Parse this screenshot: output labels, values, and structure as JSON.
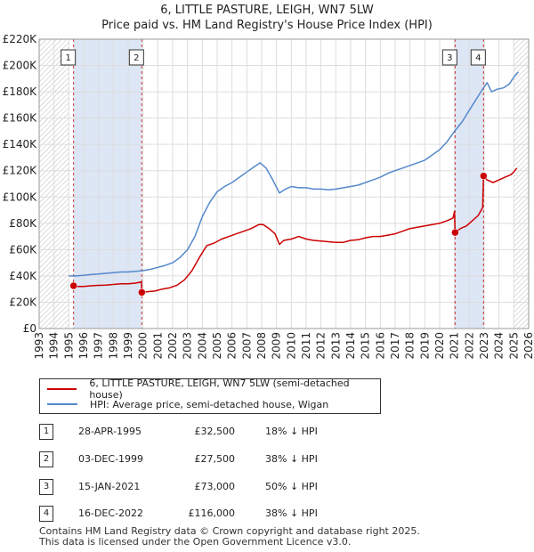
{
  "title_line1": "6, LITTLE PASTURE, LEIGH, WN7 5LW",
  "title_line2": "Price paid vs. HM Land Registry's House Price Index (HPI)",
  "colors": {
    "property": "#cc0000",
    "hpi": "#5588cc",
    "band": "#dde6f5",
    "hatch": "#bbbbbb",
    "vline": "#cc3333"
  },
  "chart_data": {
    "type": "line",
    "ylabel": "",
    "xlabel": "",
    "xlim": [
      1993,
      2026
    ],
    "ylim": [
      0,
      220000
    ],
    "x_ticks": [
      1993,
      1994,
      1995,
      1996,
      1997,
      1998,
      1999,
      2000,
      2001,
      2002,
      2003,
      2004,
      2005,
      2006,
      2007,
      2008,
      2009,
      2010,
      2011,
      2012,
      2013,
      2014,
      2015,
      2016,
      2017,
      2018,
      2019,
      2020,
      2021,
      2022,
      2023,
      2024,
      2025,
      2026
    ],
    "y_ticks": [
      {
        "value": 0,
        "label": "£0"
      },
      {
        "value": 20000,
        "label": "£20K"
      },
      {
        "value": 40000,
        "label": "£40K"
      },
      {
        "value": 60000,
        "label": "£60K"
      },
      {
        "value": 80000,
        "label": "£80K"
      },
      {
        "value": 100000,
        "label": "£100K"
      },
      {
        "value": 120000,
        "label": "£120K"
      },
      {
        "value": 140000,
        "label": "£140K"
      },
      {
        "value": 160000,
        "label": "£160K"
      },
      {
        "value": 180000,
        "label": "£180K"
      },
      {
        "value": 200000,
        "label": "£200K"
      },
      {
        "value": 220000,
        "label": "£220K"
      }
    ],
    "data_start": 1995,
    "data_end": 2025.3,
    "hatch_ranges": [
      [
        1993,
        1995.0
      ],
      [
        2025.0,
        2026
      ]
    ],
    "shaded_ranges": [
      [
        1995.32,
        1999.92
      ],
      [
        2021.04,
        2022.96
      ]
    ],
    "series": [
      {
        "name": "6, LITTLE PASTURE, LEIGH, WN7 5LW (semi-detached house)",
        "color": "#cc0000",
        "x": [
          1995.32,
          1995.6,
          1996.0,
          1996.5,
          1997.0,
          1997.5,
          1998.0,
          1998.5,
          1999.0,
          1999.5,
          1999.9,
          1999.92,
          2000.3,
          2000.8,
          2001.3,
          2001.8,
          2002.3,
          2002.8,
          2003.3,
          2003.8,
          2004.3,
          2004.8,
          2005.3,
          2005.8,
          2006.3,
          2006.8,
          2007.3,
          2007.8,
          2008.1,
          2008.5,
          2008.9,
          2009.2,
          2009.5,
          2010.0,
          2010.5,
          2011.0,
          2011.5,
          2012.0,
          2012.5,
          2013.0,
          2013.5,
          2014.0,
          2014.5,
          2015.0,
          2015.5,
          2016.0,
          2016.5,
          2017.0,
          2017.5,
          2018.0,
          2018.5,
          2019.0,
          2019.5,
          2020.0,
          2020.5,
          2020.9,
          2021.0,
          2021.04,
          2021.4,
          2021.8,
          2022.2,
          2022.6,
          2022.9,
          2022.96,
          2023.2,
          2023.6,
          2024.0,
          2024.4,
          2024.8,
          2025.0,
          2025.2
        ],
        "values": [
          32500,
          32000,
          32000,
          32500,
          32800,
          33000,
          33500,
          34000,
          34000,
          34500,
          35500,
          27500,
          28000,
          28500,
          30000,
          31000,
          33000,
          37000,
          44000,
          54000,
          63000,
          65000,
          68000,
          70000,
          72000,
          74000,
          76000,
          79000,
          79000,
          76000,
          72000,
          64000,
          67000,
          68000,
          70000,
          68000,
          67000,
          66500,
          66000,
          65500,
          65500,
          67000,
          67500,
          69000,
          70000,
          70000,
          71000,
          72000,
          74000,
          76000,
          77000,
          78000,
          79000,
          80000,
          82000,
          84000,
          89000,
          73000,
          76000,
          78000,
          82000,
          86000,
          92000,
          116000,
          113000,
          111000,
          113000,
          115000,
          117000,
          119000,
          122000
        ]
      },
      {
        "name": "HPI: Average price, semi-detached house, Wigan",
        "color": "#5588cc",
        "x": [
          1995.0,
          1995.5,
          1996.0,
          1996.5,
          1997.0,
          1997.5,
          1998.0,
          1998.5,
          1999.0,
          1999.5,
          2000.0,
          2000.5,
          2001.0,
          2001.5,
          2002.0,
          2002.5,
          2003.0,
          2003.5,
          2004.0,
          2004.5,
          2005.0,
          2005.5,
          2006.0,
          2006.5,
          2007.0,
          2007.5,
          2007.9,
          2008.3,
          2008.7,
          2009.2,
          2009.6,
          2010.0,
          2010.5,
          2011.0,
          2011.5,
          2012.0,
          2012.5,
          2013.0,
          2013.5,
          2014.0,
          2014.5,
          2015.0,
          2015.5,
          2016.0,
          2016.5,
          2017.0,
          2017.5,
          2018.0,
          2018.5,
          2019.0,
          2019.5,
          2020.0,
          2020.5,
          2021.0,
          2021.5,
          2022.0,
          2022.5,
          2022.9,
          2023.2,
          2023.5,
          2023.9,
          2024.3,
          2024.7,
          2025.0,
          2025.3
        ],
        "values": [
          40000,
          40000,
          40500,
          41000,
          41500,
          42000,
          42500,
          43000,
          43000,
          43500,
          44000,
          45000,
          46500,
          48000,
          50000,
          54000,
          60000,
          70000,
          85000,
          96000,
          104000,
          108000,
          111000,
          115000,
          119000,
          123000,
          126000,
          122000,
          114000,
          103000,
          106000,
          108000,
          107000,
          107000,
          106000,
          106000,
          105500,
          106000,
          107000,
          108000,
          109000,
          111000,
          113000,
          115000,
          118000,
          120000,
          122000,
          124000,
          126000,
          128000,
          132000,
          136000,
          142000,
          150000,
          157000,
          166000,
          175000,
          182000,
          187000,
          180000,
          182000,
          183000,
          186000,
          191000,
          195000
        ]
      }
    ],
    "sales": [
      {
        "label": "1",
        "x": 1995.32,
        "value": 32500
      },
      {
        "label": "2",
        "x": 1999.92,
        "value": 27500
      },
      {
        "label": "3",
        "x": 2021.04,
        "value": 73000
      },
      {
        "label": "4",
        "x": 2022.96,
        "value": 116000
      }
    ]
  },
  "legend": {
    "property_label": "6, LITTLE PASTURE, LEIGH, WN7 5LW (semi-detached house)",
    "hpi_label": "HPI: Average price, semi-detached house, Wigan"
  },
  "transactions": [
    {
      "num": "1",
      "date": "28-APR-1995",
      "price": "£32,500",
      "hpi": "18% ↓ HPI"
    },
    {
      "num": "2",
      "date": "03-DEC-1999",
      "price": "£27,500",
      "hpi": "38% ↓ HPI"
    },
    {
      "num": "3",
      "date": "15-JAN-2021",
      "price": "£73,000",
      "hpi": "50% ↓ HPI"
    },
    {
      "num": "4",
      "date": "16-DEC-2022",
      "price": "£116,000",
      "hpi": "38% ↓ HPI"
    }
  ],
  "footer": {
    "line1": "Contains HM Land Registry data © Crown copyright and database right 2025.",
    "line2": "This data is licensed under the Open Government Licence v3.0."
  }
}
